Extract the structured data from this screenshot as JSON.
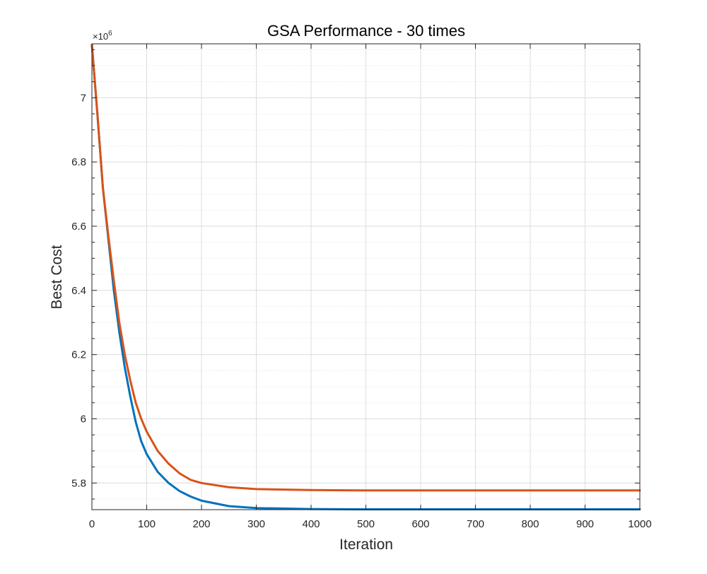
{
  "chart_data": {
    "type": "line",
    "title": "GSA Performance - 30 times",
    "xlabel": "Iteration",
    "ylabel": "Best Cost",
    "y_exponent_prefix": "×10",
    "y_exponent_power": "6",
    "xlim": [
      0,
      1000
    ],
    "ylim": [
      5.717,
      7.168
    ],
    "y_scale": 1000000,
    "grid": true,
    "minor_grid": true,
    "x_ticks": [
      0,
      100,
      200,
      300,
      400,
      500,
      600,
      700,
      800,
      900,
      1000
    ],
    "x_tick_labels": [
      "0",
      "100",
      "200",
      "300",
      "400",
      "500",
      "600",
      "700",
      "800",
      "900",
      "1000"
    ],
    "y_ticks": [
      5.8,
      6.0,
      6.2,
      6.4,
      6.6,
      6.8,
      7.0
    ],
    "y_tick_labels": [
      "5.8",
      "6",
      "6.2",
      "6.4",
      "6.6",
      "6.8",
      "7"
    ],
    "series": [
      {
        "color": "#0072BD",
        "x": [
          0,
          10,
          20,
          30,
          40,
          50,
          60,
          70,
          80,
          90,
          100,
          120,
          140,
          160,
          180,
          200,
          250,
          300,
          400,
          500,
          600,
          700,
          800,
          900,
          1000
        ],
        "y": [
          7.165,
          6.95,
          6.72,
          6.56,
          6.4,
          6.27,
          6.16,
          6.07,
          5.99,
          5.93,
          5.89,
          5.835,
          5.8,
          5.775,
          5.758,
          5.745,
          5.728,
          5.722,
          5.719,
          5.718,
          5.718,
          5.718,
          5.718,
          5.718,
          5.718
        ]
      },
      {
        "color": "#D95319",
        "x": [
          0,
          10,
          20,
          30,
          40,
          50,
          60,
          70,
          80,
          90,
          100,
          120,
          140,
          160,
          180,
          200,
          250,
          300,
          400,
          500,
          600,
          700,
          800,
          900,
          1000
        ],
        "y": [
          7.165,
          6.95,
          6.72,
          6.57,
          6.43,
          6.3,
          6.2,
          6.12,
          6.05,
          6.0,
          5.96,
          5.9,
          5.86,
          5.83,
          5.81,
          5.8,
          5.787,
          5.781,
          5.778,
          5.777,
          5.777,
          5.777,
          5.777,
          5.777,
          5.777
        ]
      }
    ]
  }
}
